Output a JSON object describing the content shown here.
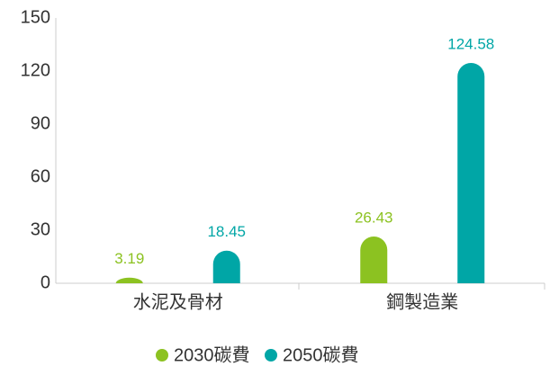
{
  "chart_data": {
    "type": "bar",
    "categories": [
      "水泥及骨材",
      "鋼製造業"
    ],
    "series": [
      {
        "name": "2030碳費",
        "color": "#8cc221",
        "values": [
          3.19,
          26.43
        ]
      },
      {
        "name": "2050碳費",
        "color": "#00a6a6",
        "values": [
          18.45,
          124.58
        ]
      }
    ],
    "ylim": [
      0,
      150
    ],
    "yticks": [
      0,
      30,
      60,
      90,
      120,
      150
    ],
    "grid": false,
    "legend": "bottom"
  }
}
